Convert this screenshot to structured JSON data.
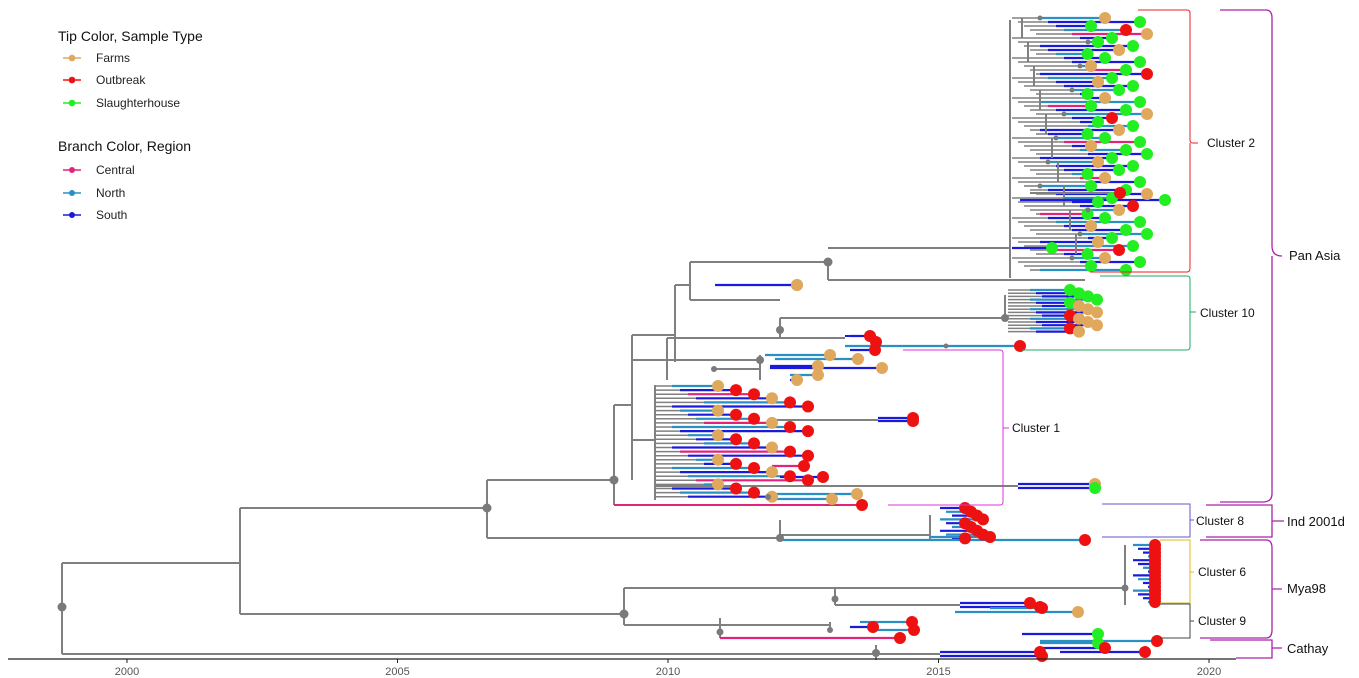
{
  "chart_data": {
    "type": "phylogenetic-tree",
    "x_axis": {
      "unit": "year",
      "range": [
        1998.7,
        2020.6
      ],
      "ticks": [
        2000,
        2005,
        2010,
        2015,
        2020
      ],
      "tick_labels": [
        "2000",
        "2005",
        "2010",
        "2015",
        "2020"
      ]
    },
    "legends": [
      {
        "title": "Tip Color, Sample Type",
        "items": [
          {
            "label": "Farms",
            "color": "#e0a85c"
          },
          {
            "label": "Outbreak",
            "color": "#ee1111"
          },
          {
            "label": "Slaughterhouse",
            "color": "#22ee22"
          }
        ]
      },
      {
        "title": "Branch Color, Region",
        "items": [
          {
            "label": "Central",
            "color": "#e0247a"
          },
          {
            "label": "North",
            "color": "#2a8fc2"
          },
          {
            "label": "South",
            "color": "#1a1adb"
          }
        ]
      }
    ],
    "clusters": [
      {
        "label": "Cluster 2",
        "color": "#ee2222",
        "from_year": 2016.6,
        "to_year": 2018.9
      },
      {
        "label": "Cluster 10",
        "color": "#22aa66",
        "from_year": 2016.3,
        "to_year": 2017.6
      },
      {
        "label": "Cluster 1",
        "color": "#dd33dd",
        "from_year": 2010.8,
        "to_year": 2017.7
      },
      {
        "label": "Cluster 8",
        "color": "#6655cc",
        "from_year": 2012.2,
        "to_year": 2017.7
      },
      {
        "label": "Cluster 6",
        "color": "#ddbb22",
        "from_year": 2018.4,
        "to_year": 2019.1
      },
      {
        "label": "Cluster 9",
        "color": "#444444",
        "from_year": 2013.1,
        "to_year": 2019.1
      }
    ],
    "lineages": [
      {
        "label": "Pan Asia",
        "color": "#aa22aa"
      },
      {
        "label": "Ind 2001d",
        "color": "#aa22aa"
      },
      {
        "label": "Mya98",
        "color": "#aa22aa"
      },
      {
        "label": "Cathay",
        "color": "#aa22aa"
      }
    ],
    "root_year": 1998.9,
    "internal_nodes": [
      {
        "year": 1998.9,
        "group": "root"
      },
      {
        "year": 2006.7,
        "group": "Pan Asia / Ind 2001d"
      },
      {
        "year": 2008.9,
        "group": "Pan Asia"
      },
      {
        "year": 2013.1,
        "group": "Cluster 2 / Cluster 10"
      },
      {
        "year": 2009.1,
        "group": "Mya98"
      },
      {
        "year": 2013.8,
        "group": "Cathay"
      }
    ]
  },
  "colors": {
    "branch_default": "#808080",
    "node": "#7a7a7a"
  }
}
